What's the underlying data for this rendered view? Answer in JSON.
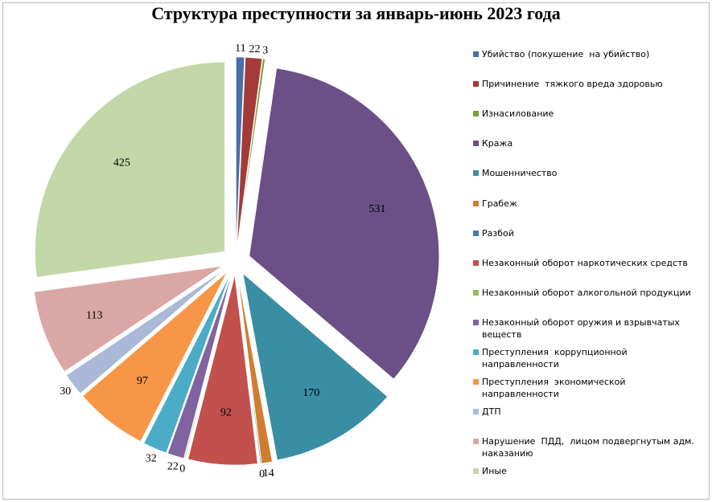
{
  "chart_data": {
    "type": "pie",
    "title": "Структура преступности за январь-июнь 2023 года",
    "legend_position": "right",
    "exploded": true,
    "slices": [
      {
        "name": "Убийство (покушение  на убийство)",
        "value": 11,
        "label": "11",
        "color": "#4a6fa5"
      },
      {
        "name": "Причинение  тяжкого вреда здоровью",
        "value": 22,
        "label": "22",
        "color": "#a33b38"
      },
      {
        "name": "Изнасилование",
        "value": 3,
        "label": "3",
        "color": "#7d9c3e"
      },
      {
        "name": "Кража",
        "value": 531,
        "label": "531",
        "color": "#6a5087"
      },
      {
        "name": "Мошенничество",
        "value": 170,
        "label": "170",
        "color": "#3a8ea3"
      },
      {
        "name": "Грабеж",
        "value": 14,
        "label": "14",
        "color": "#d07d32"
      },
      {
        "name": "Разбой",
        "value": 0,
        "label": "0",
        "color": "#4a7bb5"
      },
      {
        "name": "Незаконный оборот наркотических средств",
        "value": 92,
        "label": "92",
        "color": "#c2504d"
      },
      {
        "name": "Незаконный оборот алкогольной продукции",
        "value": 0,
        "label": "0",
        "color": "#9bbb59"
      },
      {
        "name": "Незаконный оборот оружия и взрывчатых веществ",
        "value": 22,
        "label": "22",
        "color": "#8064a2"
      },
      {
        "name": "Преступления  коррупционной направленности",
        "value": 32,
        "label": "32",
        "color": "#4aacc6"
      },
      {
        "name": "Преступления  экономической направленности",
        "value": 97,
        "label": "97",
        "color": "#f79646"
      },
      {
        "name": "ДТП",
        "value": 30,
        "label": "30",
        "color": "#a9b9d7"
      },
      {
        "name": "Нарушение  ПДД,  лицом подвергнутым адм. наказанию",
        "value": 113,
        "label": "113",
        "color": "#d9a8a6"
      },
      {
        "name": "Иные",
        "value": 425,
        "label": "425",
        "color": "#c4d7a9"
      }
    ]
  }
}
